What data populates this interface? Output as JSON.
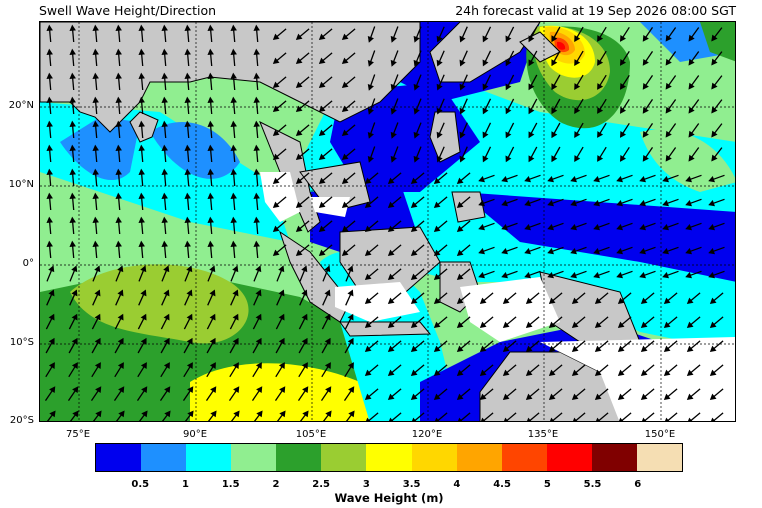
{
  "header": {
    "title": "Swell Wave Height/Direction",
    "valid_time": "24h forecast valid at 19 Sep 2026 08:00 SGT"
  },
  "axes": {
    "lat_labels": [
      "20°N",
      "10°N",
      "0°",
      "10°S",
      "20°S"
    ],
    "lon_labels": [
      "75°E",
      "90°E",
      "105°E",
      "120°E",
      "135°E",
      "150°E"
    ]
  },
  "colorbar": {
    "title": "Wave Height (m)",
    "tick_labels": [
      "0.5",
      "1",
      "1.5",
      "2",
      "2.5",
      "3",
      "3.5",
      "4",
      "4.5",
      "5",
      "5.5",
      "6"
    ],
    "colors": [
      "#0000ee",
      "#1e90ff",
      "#00ffff",
      "#90ee90",
      "#2ca02c",
      "#9acd32",
      "#ffff00",
      "#ffd700",
      "#ffa500",
      "#ff4500",
      "#ff0000",
      "#800000",
      "#f5deb3"
    ]
  },
  "map_colors": {
    "land": "#c8c8c8",
    "no_data": "#ffffff"
  }
}
